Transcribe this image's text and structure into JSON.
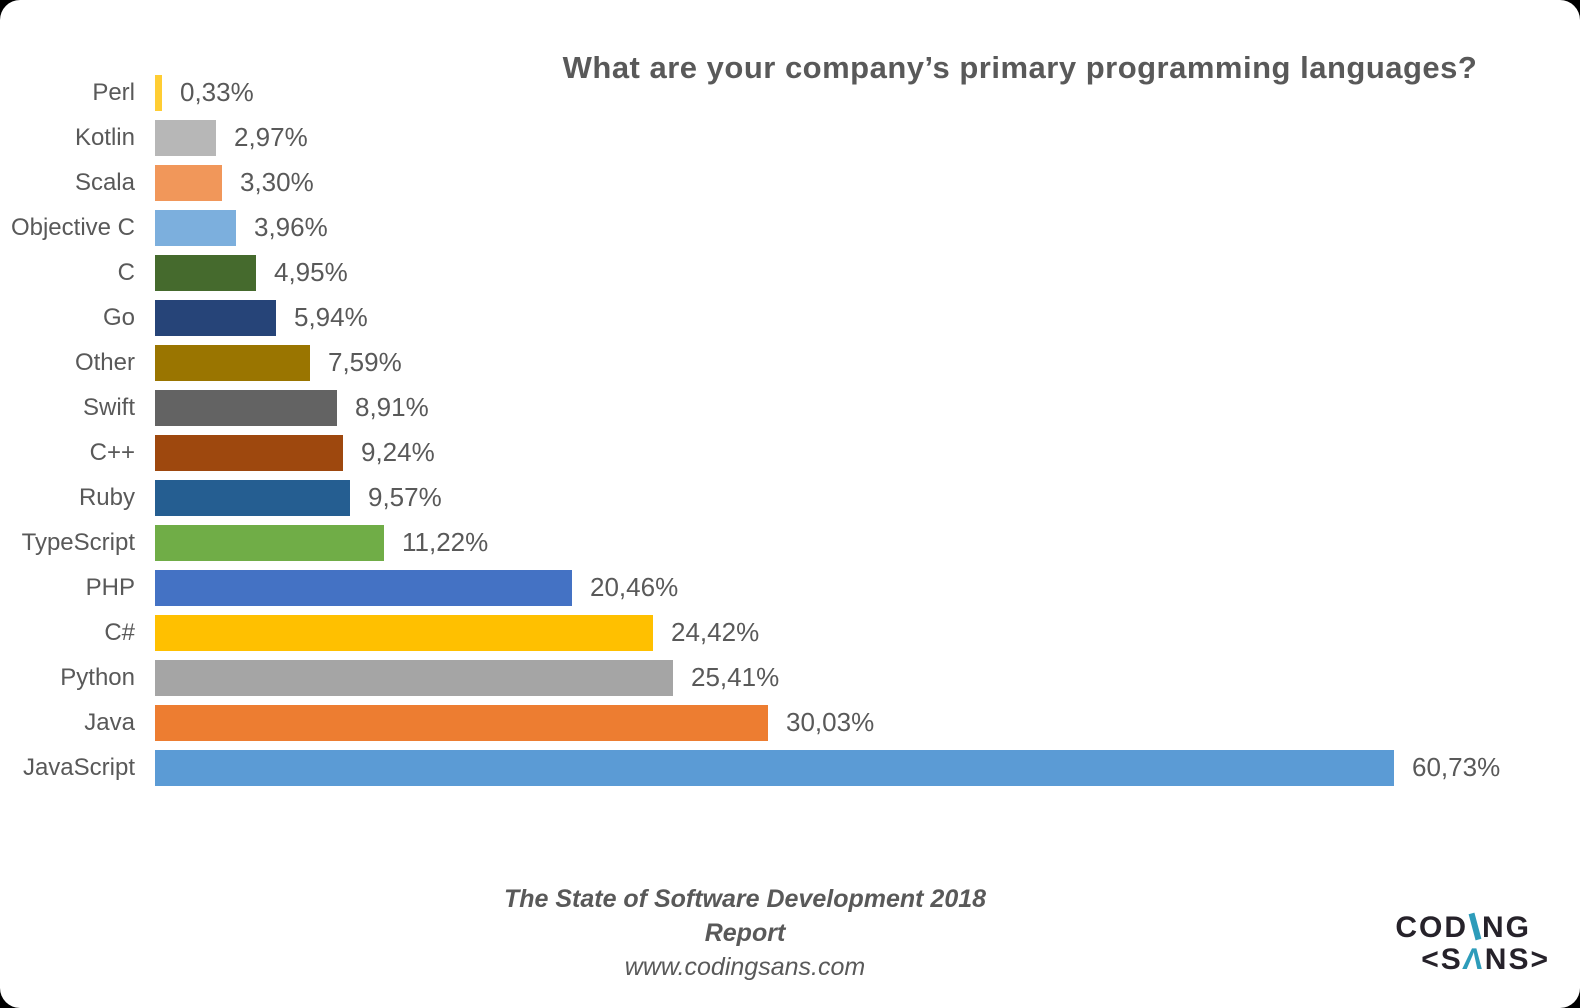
{
  "title": "What are your company’s primary programming languages?",
  "chart_data": {
    "type": "bar",
    "orientation": "horizontal",
    "title": "What are your company’s primary programming languages?",
    "xlabel": "",
    "ylabel": "",
    "unit": "percent",
    "xlim": [
      0,
      62
    ],
    "grid": false,
    "legend": false,
    "decimal_separator": ",",
    "categories": [
      "Perl",
      "Kotlin",
      "Scala",
      "Objective C",
      "C",
      "Go",
      "Other",
      "Swift",
      "C++",
      "Ruby",
      "TypeScript",
      "PHP",
      "C#",
      "Python",
      "Java",
      "JavaScript"
    ],
    "values": [
      0.33,
      2.97,
      3.3,
      3.96,
      4.95,
      5.94,
      7.59,
      8.91,
      9.24,
      9.57,
      11.22,
      20.46,
      24.42,
      25.41,
      30.03,
      60.73
    ],
    "value_labels": [
      "0,33%",
      "2,97%",
      "3,30%",
      "3,96%",
      "4,95%",
      "5,94%",
      "7,59%",
      "8,91%",
      "9,24%",
      "9,57%",
      "11,22%",
      "20,46%",
      "24,42%",
      "25,41%",
      "30,03%",
      "60,73%"
    ],
    "bar_colors": [
      "#FFCD33",
      "#B7B7B7",
      "#F1975A",
      "#7CAFDD",
      "#456A2D",
      "#264478",
      "#9A7500",
      "#636363",
      "#9E480E",
      "#255E91",
      "#70AD47",
      "#4472C4",
      "#FFC000",
      "#A5A5A5",
      "#ED7D31",
      "#5B9BD5"
    ]
  },
  "footer": {
    "line1": "The State of Software Development 2018",
    "line2": "Report",
    "line3": "www.codingsans.com"
  },
  "logo": {
    "line1_pre": "COD",
    "line1_post": "NG",
    "line2_pre": "<S",
    "line2_glyph": "Λ",
    "line2_post": "NS>",
    "accent_color": "#2D9CBA",
    "text_color": "#26222A"
  },
  "colors": {
    "text": "#595959",
    "card_background": "#FFFFFF",
    "page_background": "#000000"
  }
}
